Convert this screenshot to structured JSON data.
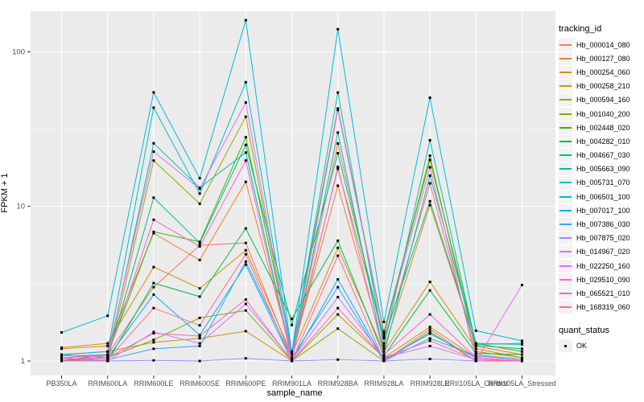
{
  "y_axis": {
    "title": "FPKM + 1"
  },
  "x_axis": {
    "title": "sample_name"
  },
  "legend": {
    "tracking_title": "tracking_id",
    "quant_title": "quant_status",
    "quant_ok_label": "OK"
  },
  "style": {
    "panel_bg": "#EBEBEB",
    "grid_major": "#FFFFFF",
    "grid_minor": "#F7F7F7",
    "tick_color": "#333333",
    "tick_label_color": "#4D4D4D",
    "point_color": "#000000"
  },
  "chart_data": {
    "type": "line",
    "title": "",
    "xlabel": "sample_name",
    "ylabel": "FPKM + 1",
    "yscale": "log10",
    "ylim": [
      0.93,
      182
    ],
    "y_major_ticks": [
      1,
      10,
      100
    ],
    "y_minor_ticks": [
      3.1623,
      31.623
    ],
    "legend_position": "right",
    "grid": true,
    "point_shape": "black-square",
    "quant_status": "OK",
    "x_categories": [
      "PB350LA",
      "RRIM600LA",
      "RRIM600LE",
      "RRIM600SE",
      "RRIM600PE",
      "RRIM901LA",
      "RRIM928BA",
      "RRIM928LA",
      "RRIM928LE",
      "RRII105LA_Control",
      "RRII105LA_Stressed"
    ],
    "series": [
      {
        "name": "Hb_000014_080",
        "color": "#F8766D",
        "values": [
          1.05,
          1.1,
          3.0,
          5.6,
          5.8,
          1.05,
          25.5,
          1.3,
          14.1,
          1.1,
          1.02
        ]
      },
      {
        "name": "Hb_000127_080",
        "color": "#EA8331",
        "values": [
          1.2,
          1.25,
          6.7,
          4.5,
          14.4,
          1.1,
          13.6,
          1.2,
          10.2,
          1.25,
          1.1
        ]
      },
      {
        "name": "Hb_000254_060",
        "color": "#D89000",
        "values": [
          1.22,
          1.3,
          4.05,
          2.95,
          5.2,
          1.1,
          5.4,
          1.15,
          3.25,
          1.2,
          1.05
        ]
      },
      {
        "name": "Hb_000258_210",
        "color": "#C09B00",
        "values": [
          1.1,
          1.15,
          1.32,
          1.4,
          1.56,
          1.0,
          2.0,
          1.05,
          1.66,
          1.05,
          1.0
        ]
      },
      {
        "name": "Hb_000594_160",
        "color": "#A3A500",
        "values": [
          1.05,
          1.0,
          19.8,
          10.4,
          38.0,
          1.1,
          17.5,
          1.45,
          21.3,
          1.15,
          1.05
        ]
      },
      {
        "name": "Hb_001040_200",
        "color": "#7CAE00",
        "values": [
          1.0,
          1.05,
          1.37,
          1.9,
          2.12,
          1.0,
          1.62,
          1.0,
          1.54,
          1.0,
          1.0
        ]
      },
      {
        "name": "Hb_002448_020",
        "color": "#39B600",
        "values": [
          1.0,
          1.1,
          6.85,
          5.9,
          28.0,
          1.15,
          43.0,
          1.55,
          20.0,
          1.3,
          1.15
        ]
      },
      {
        "name": "Hb_004282_010",
        "color": "#00BB4E",
        "values": [
          1.0,
          1.0,
          3.19,
          2.61,
          7.2,
          1.87,
          6.0,
          1.08,
          2.86,
          1.12,
          1.1
        ]
      },
      {
        "name": "Hb_004667_030",
        "color": "#00BF7D",
        "values": [
          1.0,
          1.05,
          11.4,
          5.8,
          25.0,
          1.71,
          22.1,
          1.4,
          10.8,
          1.26,
          1.2
        ]
      },
      {
        "name": "Hb_005663_090",
        "color": "#00C1A3",
        "values": [
          1.1,
          1.05,
          25.6,
          13.2,
          22.3,
          1.05,
          30.0,
          1.1,
          15.8,
          1.3,
          1.28
        ]
      },
      {
        "name": "Hb_005731_070",
        "color": "#00BFC4",
        "values": [
          1.1,
          1.15,
          43.5,
          12.1,
          63.5,
          1.1,
          54.5,
          1.25,
          26.8,
          1.28,
          1.3
        ]
      },
      {
        "name": "Hb_006501_100",
        "color": "#00BAE0",
        "values": [
          1.53,
          1.96,
          54.6,
          15.2,
          160.0,
          1.12,
          140.0,
          1.79,
          50.5,
          1.57,
          1.35
        ]
      },
      {
        "name": "Hb_007017_100",
        "color": "#00B0F6",
        "values": [
          1.02,
          1.05,
          2.69,
          1.47,
          4.2,
          1.0,
          3.37,
          1.02,
          1.5,
          1.05,
          1.0
        ]
      },
      {
        "name": "Hb_007386_030",
        "color": "#35A2FF",
        "values": [
          1.0,
          1.02,
          1.2,
          1.25,
          4.4,
          1.05,
          3.0,
          1.0,
          1.4,
          1.08,
          1.02
        ]
      },
      {
        "name": "Hb_007875_020",
        "color": "#9590FF",
        "values": [
          1.0,
          1.0,
          1.01,
          1.0,
          1.04,
          1.0,
          1.02,
          1.0,
          1.03,
          1.0,
          1.0
        ]
      },
      {
        "name": "Hb_014967_020",
        "color": "#C77CFF",
        "values": [
          1.05,
          1.0,
          1.54,
          1.3,
          2.34,
          1.02,
          2.59,
          1.05,
          1.25,
          1.02,
          1.0
        ]
      },
      {
        "name": "Hb_022250_160",
        "color": "#E76BF3",
        "values": [
          1.08,
          1.1,
          22.6,
          13.0,
          47.0,
          1.05,
          42.0,
          1.5,
          17.9,
          1.0,
          3.1
        ]
      },
      {
        "name": "Hb_029510_090",
        "color": "#FA62DB",
        "values": [
          1.05,
          1.08,
          8.2,
          5.5,
          19.8,
          1.02,
          18.0,
          1.1,
          2.0,
          1.05,
          1.0
        ]
      },
      {
        "name": "Hb_065521_010",
        "color": "#FF62BC",
        "values": [
          1.02,
          1.05,
          1.51,
          1.45,
          2.5,
          1.0,
          2.2,
          1.05,
          1.35,
          1.02,
          1.0
        ]
      },
      {
        "name": "Hb_168319_060",
        "color": "#FF6A98",
        "values": [
          1.0,
          1.02,
          2.2,
          1.7,
          4.9,
          1.0,
          4.8,
          1.0,
          1.6,
          1.0,
          1.0
        ]
      }
    ]
  }
}
